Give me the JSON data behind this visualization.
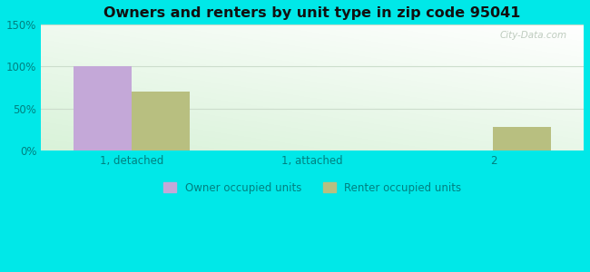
{
  "title": "Owners and renters by unit type in zip code 95041",
  "categories": [
    "1, detached",
    "1, attached",
    "2"
  ],
  "owner_values": [
    100,
    0,
    0
  ],
  "renter_values": [
    70,
    0,
    28
  ],
  "owner_color": "#c4a8d8",
  "renter_color": "#b8bf80",
  "ylim": [
    0,
    150
  ],
  "yticks": [
    0,
    50,
    100,
    150
  ],
  "ytick_labels": [
    "0%",
    "50%",
    "100%",
    "150%"
  ],
  "legend_owner": "Owner occupied units",
  "legend_renter": "Renter occupied units",
  "bar_width": 0.32,
  "fig_bg_color": "#00e8e8",
  "watermark": "City-Data.com",
  "grid_color": "#ccddcc",
  "tick_color": "#008080",
  "title_color": "#111111"
}
